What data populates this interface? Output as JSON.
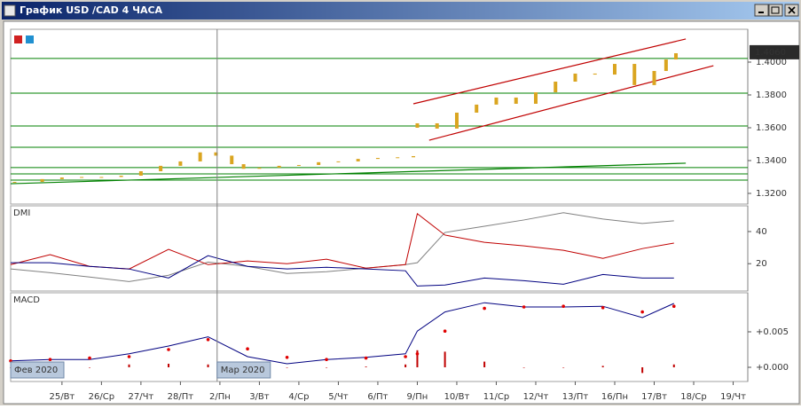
{
  "window": {
    "title": "График USD /CAD  4 ЧАСА"
  },
  "chart_data": [
    {
      "type": "candlestick",
      "x": [
        -1.2,
        -0.5,
        0,
        0.5,
        1,
        1.5,
        2,
        2.5,
        3,
        3.5,
        3.9,
        4.3,
        4.6,
        5,
        5.5,
        6,
        6.5,
        7,
        7.5,
        8,
        8.5,
        8.9,
        9,
        9.5,
        10,
        10.5,
        11,
        11.5,
        12,
        12.5,
        13,
        13.5,
        14,
        14.5,
        15,
        15.3,
        15.55
      ],
      "open": [
        1.3265,
        1.327,
        1.3287,
        1.3297,
        1.33,
        1.33,
        1.3308,
        1.3335,
        1.3368,
        1.3395,
        1.345,
        1.343,
        1.3378,
        1.335,
        1.3357,
        1.3368,
        1.3373,
        1.339,
        1.3395,
        1.341,
        1.3416,
        1.342,
        1.36,
        1.3627,
        1.3595,
        1.3692,
        1.3741,
        1.3784,
        1.3746,
        1.3816,
        1.3881,
        1.393,
        1.3924,
        1.3989,
        1.386,
        1.3946,
        1.4016
      ],
      "close": [
        1.327,
        1.3287,
        1.3297,
        1.33,
        1.33,
        1.3308,
        1.3335,
        1.3368,
        1.3395,
        1.345,
        1.343,
        1.3378,
        1.335,
        1.3357,
        1.3368,
        1.3373,
        1.339,
        1.3395,
        1.341,
        1.3416,
        1.342,
        1.3427,
        1.3627,
        1.3595,
        1.3692,
        1.3741,
        1.3784,
        1.3746,
        1.3816,
        1.3881,
        1.393,
        1.3924,
        1.3989,
        1.386,
        1.3946,
        1.4016,
        1.4054
      ],
      "color": "#daa520",
      "xlim": [
        -1.3,
        17.37
      ],
      "ylim": [
        1.3135,
        1.42
      ],
      "yticks": [
        {
          "value": 1.32,
          "label": "1.3200"
        },
        {
          "value": 1.34,
          "label": "1.3400"
        },
        {
          "value": 1.36,
          "label": "1.3600"
        },
        {
          "value": 1.38,
          "label": "1.3800"
        },
        {
          "value": 1.4,
          "label": "1.4000"
        }
      ],
      "levels": [
        1.4022,
        1.3811,
        1.3611,
        1.3481,
        1.3357,
        1.3319,
        1.3281
      ],
      "level_color": "#008000",
      "trendlines": [
        {
          "color": "#c00000",
          "x": [
            8.9,
            15.8
          ],
          "y": [
            1.3746,
            1.4141
          ]
        },
        {
          "color": "#c00000",
          "x": [
            9.3,
            16.5
          ],
          "y": [
            1.3524,
            1.3978
          ]
        },
        {
          "color": "#008000",
          "x": [
            -1.3,
            15.8
          ],
          "y": [
            1.3259,
            1.3384
          ]
        }
      ],
      "last_price": {
        "value": 1.406,
        "label": "1.4060"
      }
    },
    {
      "type": "line",
      "title": "DMI",
      "x": [
        -1.3,
        -0.3,
        0.7,
        1.7,
        2.7,
        3.7,
        4.7,
        5.7,
        6.7,
        7.7,
        8.7,
        9,
        9.7,
        10.7,
        11.7,
        12.7,
        13.7,
        14.7,
        15.5
      ],
      "series": [
        {
          "color": "#808080",
          "style": "line",
          "values": [
            16.7,
            14.4,
            11.7,
            8.9,
            12.8,
            21,
            18.3,
            13.9,
            15,
            17.2,
            19.4,
            20.6,
            39.4,
            43.3,
            47.2,
            51.7,
            47.8,
            45,
            46.7
          ]
        },
        {
          "color": "#c00000",
          "style": "line",
          "values": [
            19.4,
            25.6,
            18.3,
            16.7,
            28.9,
            19.4,
            21.7,
            20,
            22.8,
            17.2,
            19.4,
            51.1,
            37.8,
            33.3,
            31.1,
            28.3,
            23.3,
            29.4,
            32.8
          ]
        },
        {
          "color": "#000080",
          "style": "line",
          "values": [
            20.6,
            20.6,
            18.3,
            16.7,
            11.1,
            25,
            18.3,
            16.7,
            17.8,
            16.7,
            15.6,
            6.1,
            6.7,
            11.1,
            9.4,
            7.2,
            13.3,
            11.1,
            11.1
          ]
        }
      ],
      "xlim": [
        -1.3,
        17.37
      ],
      "ylim": [
        3,
        56
      ],
      "yticks": [
        20,
        40
      ]
    },
    {
      "type": "line",
      "title": "MACD",
      "x": [
        -1.3,
        -0.3,
        0.7,
        1.7,
        2.7,
        3.7,
        4.7,
        5.7,
        6.7,
        7.7,
        8.7,
        9,
        9.7,
        10.7,
        11.7,
        12.7,
        13.7,
        14.7,
        15.5
      ],
      "series": [
        {
          "color": "#c00000",
          "style": "bars",
          "values": [
            0,
            0,
            0,
            0.0004,
            0.0005,
            0.0004,
            -0.0001,
            0,
            0,
            0.0001,
            0.0004,
            0.0024,
            0.0022,
            0.0008,
            0,
            0,
            0.0002,
            -0.0008,
            0.0004
          ]
        },
        {
          "color": "#000080",
          "style": "line",
          "values": [
            0.0009,
            0.0011,
            0.0011,
            0.0019,
            0.003,
            0.0043,
            0.0015,
            0.0005,
            0.0011,
            0.0014,
            0.0019,
            0.0051,
            0.0078,
            0.0091,
            0.0085,
            0.0085,
            0.0086,
            0.007,
            0.009
          ]
        },
        {
          "color": "#e00000",
          "style": "dots",
          "values": [
            0.0009,
            0.0011,
            0.0013,
            0.0015,
            0.0025,
            0.0039,
            0.0026,
            0.0014,
            0.0011,
            0.0013,
            0.0015,
            0.0019,
            0.0051,
            0.0083,
            0.0085,
            0.0086,
            0.0084,
            0.0078,
            0.0086
          ]
        }
      ],
      "xlim": [
        -1.3,
        17.37
      ],
      "ylim": [
        -0.002,
        0.0105
      ],
      "yticks": [
        {
          "value": 0.005,
          "label": "+0.005"
        },
        {
          "value": 0,
          "label": "+0.000"
        }
      ],
      "period_labels": [
        {
          "x": -1.3,
          "label": "Фев 2020"
        },
        {
          "x": 3.93,
          "label": "Мар 2020"
        }
      ],
      "xticks": [
        {
          "value": 0,
          "label": "25/Вт"
        },
        {
          "value": 1,
          "label": "26/Ср"
        },
        {
          "value": 2,
          "label": "27/Чт"
        },
        {
          "value": 3,
          "label": "28/Пт"
        },
        {
          "value": 4,
          "label": "2/Пн"
        },
        {
          "value": 5,
          "label": "3/Вт"
        },
        {
          "value": 6,
          "label": "4/Ср"
        },
        {
          "value": 7,
          "label": "5/Чт"
        },
        {
          "value": 8,
          "label": "6/Пт"
        },
        {
          "value": 9,
          "label": "9/Пн"
        },
        {
          "value": 10,
          "label": "10/Вт"
        },
        {
          "value": 11,
          "label": "11/Ср"
        },
        {
          "value": 12,
          "label": "12/Чт"
        },
        {
          "value": 13,
          "label": "13/Пт"
        },
        {
          "value": 14,
          "label": "16/Пн"
        },
        {
          "value": 15,
          "label": "17/Вт"
        },
        {
          "value": 16,
          "label": "18/Ср"
        },
        {
          "value": 17,
          "label": "19/Чт"
        }
      ]
    }
  ]
}
